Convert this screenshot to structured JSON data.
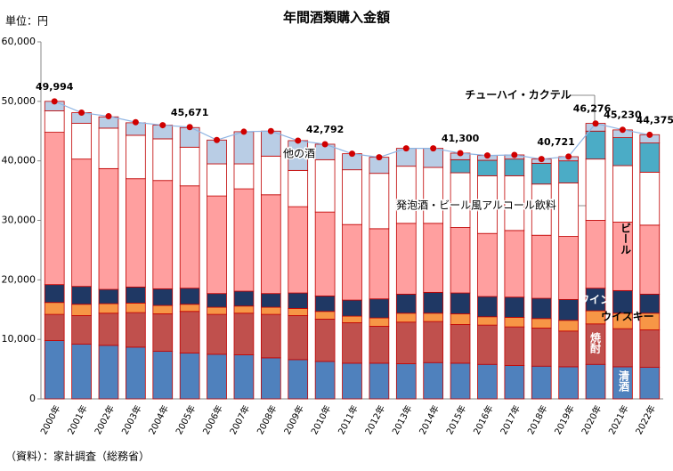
{
  "chart_data": {
    "type": "stacked-bar-line",
    "title": "年間酒類購入金額",
    "unit_label": "単位：円",
    "source": "（資料）：家計調査（総務省）",
    "categories": [
      "2000年",
      "2001年",
      "2002年",
      "2003年",
      "2004年",
      "2005年",
      "2006年",
      "2007年",
      "2008年",
      "2009年",
      "2010年",
      "2011年",
      "2012年",
      "2013年",
      "2014年",
      "2015年",
      "2016年",
      "2017年",
      "2018年",
      "2019年",
      "2020年",
      "2021年",
      "2022年"
    ],
    "series": [
      {
        "name": "清酒",
        "color": "#4f81bd",
        "values": [
          9800,
          9200,
          9000,
          8700,
          8000,
          7700,
          7500,
          7400,
          6900,
          6600,
          6300,
          6000,
          6000,
          5900,
          6100,
          6000,
          5800,
          5600,
          5500,
          5400,
          5800,
          5400,
          5300
        ]
      },
      {
        "name": "焼酎",
        "color": "#c0504d",
        "values": [
          4400,
          4800,
          5400,
          5800,
          6300,
          7000,
          6700,
          7000,
          7300,
          7400,
          7100,
          6800,
          6200,
          7000,
          6900,
          6500,
          6600,
          6500,
          6400,
          6000,
          6800,
          6400,
          6300
        ]
      },
      {
        "name": "ウイスキー",
        "color": "#f79646",
        "values": [
          2000,
          1900,
          1600,
          1600,
          1400,
          1200,
          1200,
          1200,
          1200,
          1200,
          1300,
          1100,
          1400,
          1500,
          1400,
          1800,
          1400,
          1600,
          1600,
          1800,
          2200,
          2600,
          2800
        ]
      },
      {
        "name": "ワイン",
        "color": "#1f3864",
        "values": [
          3000,
          3000,
          2400,
          2700,
          2800,
          2700,
          2300,
          2500,
          2300,
          2600,
          2600,
          2700,
          3200,
          3200,
          3500,
          3500,
          3400,
          3400,
          3400,
          3500,
          3800,
          3800,
          3200
        ]
      },
      {
        "name": "ビール",
        "color": "#ff9f9f",
        "values": [
          25600,
          21400,
          20300,
          18200,
          18200,
          17200,
          16400,
          17200,
          16600,
          14500,
          14100,
          12700,
          11800,
          11900,
          11600,
          11000,
          10600,
          11200,
          10600,
          10600,
          11400,
          11500,
          11600
        ]
      },
      {
        "name": "発泡酒・ビール風アルコール飲料",
        "color": "#ffffff",
        "values": [
          3600,
          6000,
          6800,
          7300,
          7000,
          6500,
          5400,
          4200,
          6500,
          6100,
          8800,
          9200,
          9300,
          9600,
          9400,
          9200,
          9700,
          9200,
          8600,
          9000,
          10300,
          9500,
          8900
        ]
      },
      {
        "name": "チューハイ・カクテル",
        "color": "#4bacc6",
        "values": [
          null,
          null,
          null,
          null,
          null,
          null,
          null,
          null,
          null,
          null,
          null,
          null,
          null,
          null,
          null,
          2200,
          2600,
          2800,
          3500,
          3700,
          4700,
          4700,
          4900
        ]
      },
      {
        "name": "他の酒",
        "color": "#b9cde5",
        "values": [
          1600,
          1800,
          1900,
          2100,
          2300,
          3300,
          4000,
          5400,
          4200,
          5000,
          2600,
          2700,
          2700,
          3000,
          3200,
          1100,
          800,
          700,
          700,
          700,
          1300,
          1300,
          1400
        ]
      }
    ],
    "total": {
      "color": "#8eb4e3",
      "marker_color": "#d00000",
      "values": [
        49994,
        48100,
        47500,
        46500,
        46000,
        45671,
        43500,
        44900,
        45000,
        43400,
        42792,
        41200,
        40600,
        42100,
        42100,
        41300,
        40900,
        41000,
        40300,
        40721,
        46276,
        45230,
        44375
      ],
      "value_labels": [
        "49,994",
        null,
        null,
        null,
        null,
        "45,671",
        null,
        null,
        null,
        null,
        "42,792",
        null,
        null,
        null,
        null,
        "41,300",
        null,
        null,
        null,
        "40,721",
        "46,276",
        "45,230",
        "44,375"
      ]
    },
    "ylim": [
      0,
      60000
    ],
    "yticks": [
      0,
      {
        "value": 10000,
        "label": "10,000"
      },
      {
        "value": 20000,
        "label": "20,000"
      },
      {
        "value": 30000,
        "label": "30,000"
      },
      {
        "value": 40000,
        "label": "40,000"
      },
      {
        "value": 50000,
        "label": "50,000"
      },
      {
        "value": 60000,
        "label": "60,000"
      }
    ]
  }
}
